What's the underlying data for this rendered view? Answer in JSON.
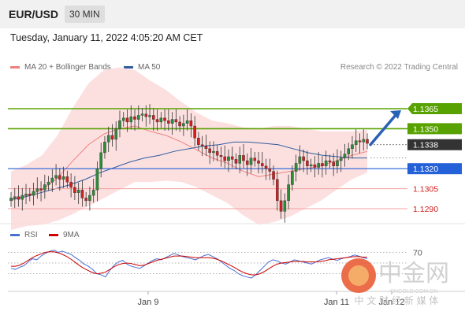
{
  "header": {
    "symbol": "EUR/USD",
    "timeframe": "30 MIN"
  },
  "timestamp": "Tuesday, January 11, 2022 4:05:20 AM CET",
  "legend": {
    "ma20_bb": {
      "label": "MA 20 + Bollinger Bands",
      "color": "#f08080"
    },
    "ma50": {
      "label": "MA 50",
      "color": "#2e5c9e"
    }
  },
  "credit": "Research © 2022 Trading Central",
  "rsi_legend": {
    "rsi": {
      "label": "RSI",
      "color": "#4a6fd4"
    },
    "ma9": {
      "label": "9MA",
      "color": "#cc0000"
    }
  },
  "rsi_level_label": "70",
  "x_labels": [
    "Jan 9",
    "Jan 11",
    "Jan 12"
  ],
  "watermark": {
    "brand": "中金网",
    "domain": "CNGOLD.COM.CN",
    "tagline": "中 文 财 经 新 媒 体"
  },
  "colors": {
    "green": "#58a200",
    "blue": "#2461d8",
    "red_line": "#f4a0a0",
    "red_label": "#d22020",
    "candle_up": "#2e8b3a",
    "candle_down": "#d02020",
    "current_bg": "#333333"
  },
  "chart_data": {
    "type": "candlestick",
    "levels": [
      {
        "value": 1.1365,
        "label": "1.1365",
        "kind": "resistance"
      },
      {
        "value": 1.135,
        "label": "1.1350",
        "kind": "resistance"
      },
      {
        "value": 1.1338,
        "label": "1.1338",
        "kind": "current"
      },
      {
        "value": 1.132,
        "label": "1.1320",
        "kind": "pivot"
      },
      {
        "value": 1.1305,
        "label": "1.1305",
        "kind": "support"
      },
      {
        "value": 1.129,
        "label": "1.1290",
        "kind": "support"
      }
    ],
    "ylim": [
      1.1284,
      1.1388
    ],
    "candles_close": [
      1.1298,
      1.1299,
      1.1297,
      1.13,
      1.1301,
      1.13,
      1.1303,
      1.1305,
      1.1304,
      1.1308,
      1.131,
      1.1313,
      1.1315,
      1.1312,
      1.1314,
      1.131,
      1.1306,
      1.1302,
      1.1304,
      1.1298,
      1.1296,
      1.13,
      1.1304,
      1.132,
      1.1332,
      1.134,
      1.1345,
      1.1342,
      1.135,
      1.1356,
      1.1358,
      1.1355,
      1.1359,
      1.1357,
      1.136,
      1.1361,
      1.1359,
      1.136,
      1.1357,
      1.1355,
      1.1358,
      1.1356,
      1.1354,
      1.1357,
      1.1355,
      1.1352,
      1.1354,
      1.1356,
      1.1352,
      1.1343,
      1.1338,
      1.1337,
      1.1335,
      1.1332,
      1.1333,
      1.133,
      1.1329,
      1.1326,
      1.1329,
      1.1327,
      1.1324,
      1.133,
      1.1326,
      1.1323,
      1.1328,
      1.1326,
      1.1324,
      1.1322,
      1.132,
      1.1318,
      1.1312,
      1.1296,
      1.1288,
      1.1296,
      1.1308,
      1.1318,
      1.1324,
      1.1329,
      1.1326,
      1.1322,
      1.1323,
      1.1321,
      1.1324,
      1.1322,
      1.1326,
      1.1325,
      1.1322,
      1.1326,
      1.1328,
      1.1331,
      1.1335,
      1.1338,
      1.1341,
      1.134,
      1.1342,
      1.1339
    ],
    "ma50": [
      1.1297,
      1.1299,
      1.1302,
      1.1305,
      1.1308,
      1.1312,
      1.1317,
      1.1321,
      1.1325,
      1.1328,
      1.133,
      1.1333,
      1.1335,
      1.1337,
      1.1338,
      1.134,
      1.134,
      1.1339,
      1.1338,
      1.1335,
      1.1332,
      1.133,
      1.1329,
      1.1328,
      1.1328
    ],
    "ma20": [
      1.1296,
      1.13,
      1.1304,
      1.1313,
      1.1326,
      1.1338,
      1.1346,
      1.135,
      1.1352,
      1.1348,
      1.1345,
      1.134,
      1.1334,
      1.1328,
      1.1324,
      1.1318,
      1.1314,
      1.1316,
      1.1318,
      1.132,
      1.1322,
      1.1326,
      1.133,
      1.1333
    ],
    "projection": {
      "from": 1.1338,
      "to": 1.1365
    },
    "rsi": [
      40,
      38,
      42,
      45,
      52,
      58,
      56,
      63,
      68,
      72,
      74,
      70,
      72,
      69,
      66,
      60,
      55,
      48,
      44,
      38,
      30,
      28,
      24,
      36,
      46,
      52,
      55,
      48,
      44,
      42,
      40,
      45,
      50,
      55,
      58,
      56,
      60,
      64,
      68,
      65,
      62,
      60,
      58,
      56,
      60,
      64,
      66,
      62,
      58,
      52,
      46,
      40,
      36,
      30,
      26,
      24,
      22,
      28,
      36,
      44,
      52,
      56,
      54,
      50,
      48,
      52,
      56,
      54,
      52,
      50,
      48,
      52,
      56,
      58,
      60,
      57,
      55,
      58,
      60,
      62,
      65,
      63,
      60,
      58
    ],
    "rsi_ma9": [
      44,
      44,
      46,
      50,
      55,
      60,
      64,
      67,
      70,
      71,
      71,
      69,
      66,
      62,
      57,
      51,
      45,
      40,
      36,
      32,
      30,
      31,
      33,
      38,
      43,
      47,
      49,
      50,
      49,
      47,
      45,
      46,
      49,
      52,
      55,
      57,
      59,
      61,
      63,
      63,
      63,
      62,
      61,
      60,
      60,
      60,
      60,
      59,
      57,
      54,
      50,
      46,
      42,
      37,
      33,
      30,
      28,
      28,
      30,
      34,
      39,
      44,
      48,
      50,
      51,
      52,
      53,
      53,
      53,
      52,
      52,
      52,
      53,
      54,
      56,
      57,
      58,
      59,
      60,
      61,
      62,
      62,
      61,
      61
    ]
  }
}
